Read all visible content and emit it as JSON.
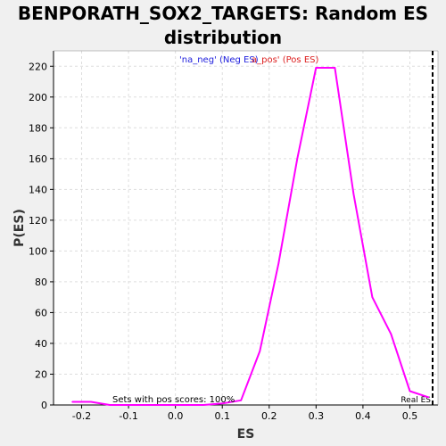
{
  "title_line1": "BENPORATH_SOX2_TARGETS: Random ES",
  "title_line2": "distribution",
  "chart_data": {
    "type": "line",
    "title": "BENPORATH_SOX2_TARGETS: Random ES distribution",
    "xlabel": "ES",
    "ylabel": "P(ES)",
    "xlim": [
      -0.26,
      0.56
    ],
    "ylim": [
      0,
      230
    ],
    "xticks": [
      -0.2,
      -0.1,
      0.0,
      0.1,
      0.2,
      0.3,
      0.4,
      0.5
    ],
    "xtick_labels": [
      "-0.2",
      "-0.1",
      "0.0",
      "0.1",
      "0.2",
      "0.3",
      "0.4",
      "0.5"
    ],
    "yticks": [
      0,
      20,
      40,
      60,
      80,
      100,
      120,
      140,
      160,
      180,
      200,
      220
    ],
    "ytick_labels": [
      "0",
      "20",
      "40",
      "60",
      "80",
      "100",
      "120",
      "140",
      "160",
      "180",
      "200",
      "220"
    ],
    "grid": true,
    "series": [
      {
        "color": "#ff00ff",
        "x": [
          -0.22,
          -0.18,
          -0.14,
          -0.1,
          -0.06,
          -0.02,
          0.02,
          0.06,
          0.1,
          0.14,
          0.18,
          0.22,
          0.26,
          0.3,
          0.34,
          0.38,
          0.42,
          0.46,
          0.5,
          0.54
        ],
        "y": [
          2,
          2,
          0,
          0,
          0,
          0,
          0,
          0,
          1,
          3,
          35,
          92,
          160,
          219,
          219,
          137,
          70,
          46,
          9,
          5
        ]
      }
    ],
    "real_es": 0.56,
    "real_es_label": "Real ES",
    "legend": [
      {
        "text": "'na_neg' (Neg ES)",
        "color": "#2020dd"
      },
      {
        "text": "a_pos' (Pos ES)",
        "color": "#dd2020"
      }
    ],
    "annotation": "Sets with pos scores: 100%",
    "colors": {
      "line": "#ff00ff",
      "grid": "#dddddd",
      "real_es": "#000000"
    }
  }
}
